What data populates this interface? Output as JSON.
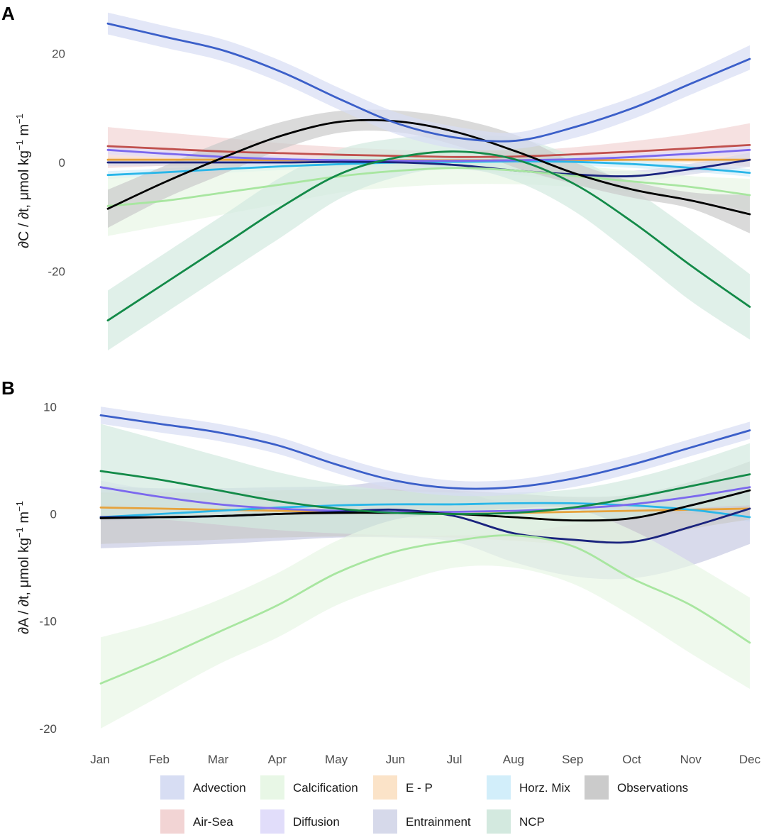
{
  "chart_data": [
    {
      "panel": "A",
      "type": "line",
      "ylabel": "∂C / ∂t, μmol kg⁻¹ m⁻¹",
      "ylabel_parts": {
        "pre": "∂C / ∂t, μmol kg",
        "exp1": "−1",
        "mid": " m",
        "exp2": "−1"
      },
      "categories": [
        "Jan",
        "Feb",
        "Mar",
        "Apr",
        "May",
        "Jun",
        "Jul",
        "Aug",
        "Sep",
        "Oct",
        "Nov",
        "Dec"
      ],
      "ylim": [
        -35,
        28
      ],
      "yticks": [
        -20,
        0,
        20
      ],
      "series": [
        {
          "name": "Air-Sea",
          "color": "#c0504d",
          "band": "#f2d4d4",
          "values": [
            3.0,
            2.5,
            2.0,
            1.7,
            1.4,
            1.2,
            1.0,
            1.1,
            1.5,
            2.0,
            2.6,
            3.2
          ],
          "lower": [
            -1.0,
            -0.6,
            -0.2,
            0,
            0.1,
            0.1,
            0.1,
            0.1,
            0.2,
            0.2,
            0.0,
            -0.8
          ],
          "upper": [
            6.5,
            5.5,
            4.5,
            3.5,
            2.8,
            2.3,
            2.0,
            2.1,
            2.8,
            3.9,
            5.3,
            7.2
          ]
        },
        {
          "name": "E - P",
          "color": "#e6a23c",
          "band": "#fbe3c8",
          "values": [
            0.5,
            0.5,
            0.5,
            0.4,
            0.4,
            0.4,
            0.4,
            0.4,
            0.4,
            0.5,
            0.5,
            0.5
          ],
          "lower": [
            0,
            0,
            0,
            0,
            0,
            0,
            0,
            0,
            0,
            0,
            0,
            0
          ],
          "upper": [
            1,
            1,
            1,
            0.9,
            0.9,
            0.9,
            0.9,
            0.9,
            0.9,
            1,
            1,
            1
          ]
        },
        {
          "name": "Horz. Mix",
          "color": "#29b6e8",
          "band": "#d2eefa",
          "values": [
            -2.3,
            -1.8,
            -1.2,
            -0.7,
            -0.3,
            0,
            0.1,
            0.2,
            0.1,
            -0.3,
            -1.0,
            -1.9
          ],
          "lower": [
            -3.0,
            -2.5,
            -1.9,
            -1.4,
            -1.0,
            -0.7,
            -0.6,
            -0.5,
            -0.6,
            -1.0,
            -1.7,
            -2.6
          ],
          "upper": [
            -1.6,
            -1.1,
            -0.5,
            0,
            0.4,
            0.7,
            0.8,
            0.9,
            0.8,
            0.4,
            -0.3,
            -1.2
          ]
        },
        {
          "name": "Diffusion",
          "color": "#7b68ee",
          "band": "#e1ddfa",
          "values": [
            2.3,
            1.6,
            1.0,
            0.6,
            0.4,
            0.3,
            0.3,
            0.4,
            0.6,
            1.0,
            1.6,
            2.3
          ],
          "lower": [
            1.5,
            0.9,
            0.4,
            0.1,
            0,
            0,
            0,
            0,
            0.1,
            0.4,
            0.9,
            1.5
          ],
          "upper": [
            3.1,
            2.3,
            1.6,
            1.1,
            0.8,
            0.6,
            0.6,
            0.8,
            1.1,
            1.6,
            2.3,
            3.1
          ]
        },
        {
          "name": "Entrainment",
          "color": "#1a237e",
          "band": "#d6d9ea",
          "values": [
            0,
            0,
            0,
            0,
            0.1,
            0,
            -0.5,
            -1.5,
            -2.2,
            -2.5,
            -1.2,
            0.5
          ],
          "lower": [
            -0.6,
            -0.6,
            -0.6,
            -0.6,
            -0.5,
            -0.6,
            -1.2,
            -2.3,
            -3.1,
            -3.5,
            -2.2,
            -0.8
          ],
          "upper": [
            0.6,
            0.6,
            0.6,
            0.6,
            0.7,
            0.6,
            0.2,
            -0.7,
            -1.3,
            -1.5,
            -0.2,
            1.8
          ]
        },
        {
          "name": "Calcification",
          "color": "#a8e6a0",
          "band": "#e8f7e6",
          "values": [
            -8.0,
            -7.0,
            -5.5,
            -4.0,
            -2.5,
            -1.5,
            -1.0,
            -1.5,
            -2.5,
            -3.5,
            -4.5,
            -6.0
          ],
          "lower": [
            -13.5,
            -11.5,
            -9.5,
            -7.5,
            -5.5,
            -4.5,
            -4.0,
            -4.0,
            -4.5,
            -5.5,
            -6.5,
            -9.0
          ],
          "upper": [
            -2.5,
            -2.5,
            -1.5,
            -0.5,
            0.5,
            1.5,
            2.0,
            1.0,
            -0.5,
            -1.5,
            -2.5,
            -3.0
          ]
        },
        {
          "name": "NCP",
          "color": "#138a48",
          "band": "#d3e9df",
          "values": [
            -29.0,
            -22.0,
            -15.0,
            -8.0,
            -2.0,
            1.0,
            2.0,
            0.5,
            -4.0,
            -11.0,
            -19.0,
            -26.5
          ],
          "lower": [
            -34.5,
            -27.5,
            -20.5,
            -13.5,
            -6.5,
            -2.5,
            -1.0,
            -3.5,
            -9.0,
            -17.0,
            -25.5,
            -32.5
          ],
          "upper": [
            -23.5,
            -16.5,
            -9.5,
            -2.5,
            2.5,
            4.5,
            5.0,
            4.5,
            1.0,
            -5.0,
            -12.5,
            -20.5
          ]
        },
        {
          "name": "Observations",
          "color": "#000000",
          "band": "#cbcbcb",
          "values": [
            -8.5,
            -3.5,
            1.0,
            5.0,
            7.5,
            7.5,
            5.5,
            2.0,
            -2.0,
            -5.0,
            -7.0,
            -9.5
          ],
          "lower": [
            -12.0,
            -6.5,
            -2.0,
            2.5,
            5.5,
            5.5,
            3.0,
            -1.0,
            -4.0,
            -6.5,
            -8.5,
            -13.0
          ],
          "upper": [
            -5.0,
            -0.5,
            4.0,
            7.5,
            9.5,
            9.5,
            8.0,
            5.0,
            0.0,
            -3.5,
            -5.5,
            -6.0
          ]
        },
        {
          "name": "Advection",
          "color": "#3b5fc9",
          "band": "#d7ddf3",
          "values": [
            25.5,
            23.0,
            20.5,
            16.5,
            11.5,
            7.0,
            4.5,
            4.0,
            6.5,
            10.0,
            14.5,
            19.0
          ],
          "lower": [
            23.5,
            21.0,
            18.5,
            14.5,
            9.5,
            5.0,
            2.5,
            2.5,
            4.5,
            8.0,
            12.5,
            17.0
          ],
          "upper": [
            27.5,
            25.0,
            22.5,
            18.5,
            13.5,
            9.0,
            6.5,
            5.5,
            8.5,
            12.0,
            16.5,
            21.5
          ]
        }
      ]
    },
    {
      "panel": "B",
      "type": "line",
      "ylabel": "∂A / ∂t, μmol kg⁻¹ m⁻¹",
      "ylabel_parts": {
        "pre": "∂A / ∂t, μmol kg",
        "exp1": "−1",
        "mid": " m",
        "exp2": "−1"
      },
      "categories": [
        "Jan",
        "Feb",
        "Mar",
        "Apr",
        "May",
        "Jun",
        "Jul",
        "Aug",
        "Sep",
        "Oct",
        "Nov",
        "Dec"
      ],
      "ylim": [
        -20.5,
        11
      ],
      "yticks": [
        -20,
        -10,
        0,
        10
      ],
      "series": [
        {
          "name": "E - P",
          "color": "#e6a23c",
          "band": "#fbe3c8",
          "values": [
            0.6,
            0.5,
            0.4,
            0.3,
            0.2,
            0.1,
            0.0,
            0.1,
            0.2,
            0.3,
            0.4,
            0.5
          ],
          "lower": [
            0.2,
            0.1,
            0,
            0,
            -0.1,
            -0.2,
            -0.3,
            -0.2,
            -0.1,
            0,
            0,
            0.1
          ],
          "upper": [
            1.0,
            0.9,
            0.8,
            0.6,
            0.5,
            0.4,
            0.3,
            0.4,
            0.5,
            0.6,
            0.8,
            0.9
          ]
        },
        {
          "name": "Horz. Mix",
          "color": "#29b6e8",
          "band": "#d2eefa",
          "values": [
            -0.3,
            0.0,
            0.3,
            0.6,
            0.8,
            0.9,
            0.9,
            1.0,
            1.0,
            0.8,
            0.4,
            -0.3
          ],
          "lower": [
            -0.7,
            -0.4,
            -0.1,
            0.2,
            0.4,
            0.5,
            0.5,
            0.6,
            0.6,
            0.4,
            0,
            -0.7
          ],
          "upper": [
            0.1,
            0.4,
            0.7,
            1.0,
            1.2,
            1.3,
            1.3,
            1.4,
            1.4,
            1.2,
            0.8,
            0.1
          ]
        },
        {
          "name": "Diffusion",
          "color": "#7b68ee",
          "band": "#e1ddfa",
          "values": [
            2.5,
            1.6,
            0.9,
            0.5,
            0.3,
            0.2,
            0.2,
            0.3,
            0.5,
            0.9,
            1.6,
            2.5
          ],
          "lower": [
            1.9,
            1.1,
            0.5,
            0.2,
            0.0,
            -0.1,
            -0.1,
            0.0,
            0.2,
            0.5,
            1.1,
            1.9
          ],
          "upper": [
            3.1,
            2.1,
            1.3,
            0.8,
            0.6,
            0.5,
            0.5,
            0.6,
            0.8,
            1.3,
            2.1,
            3.1
          ]
        },
        {
          "name": "Entrainment",
          "color": "#1a237e",
          "band": "#c8cbe3",
          "values": [
            -0.3,
            -0.3,
            -0.2,
            0.0,
            0.2,
            0.4,
            -0.2,
            -1.8,
            -2.4,
            -2.6,
            -1.2,
            0.5
          ],
          "lower": [
            -3.2,
            -3.0,
            -2.8,
            -2.5,
            -2.2,
            -2.2,
            -2.6,
            -4.5,
            -5.8,
            -6.0,
            -4.8,
            -2.8
          ],
          "upper": [
            2.6,
            2.4,
            2.4,
            2.5,
            2.6,
            3.0,
            2.2,
            0.9,
            1.0,
            0.8,
            2.4,
            3.8
          ]
        },
        {
          "name": "Observations",
          "color": "#000000",
          "band": "#cbcbcb",
          "values": [
            -0.4,
            -0.3,
            -0.2,
            0.0,
            0.1,
            0.1,
            0.0,
            -0.3,
            -0.6,
            -0.4,
            0.8,
            2.2
          ],
          "lower": [
            -2.8,
            -2.6,
            -2.4,
            -2.2,
            -2.1,
            -2.1,
            -2.2,
            -2.5,
            -2.8,
            -2.6,
            -1.4,
            -0.5
          ],
          "upper": [
            2.0,
            2.0,
            2.0,
            2.2,
            2.3,
            2.3,
            2.2,
            1.9,
            1.6,
            1.8,
            3.0,
            4.9
          ]
        },
        {
          "name": "NCP",
          "color": "#138a48",
          "band": "#d3e9df",
          "values": [
            4.0,
            3.2,
            2.2,
            1.2,
            0.5,
            0.1,
            0.0,
            0.1,
            0.6,
            1.5,
            2.6,
            3.7
          ],
          "lower": [
            -0.3,
            -0.5,
            -1.0,
            -1.5,
            -1.8,
            -2.0,
            -2.0,
            -1.8,
            -1.0,
            -0.3,
            0.5,
            0.8
          ],
          "upper": [
            8.4,
            6.9,
            5.4,
            3.9,
            2.8,
            2.2,
            2.0,
            2.0,
            2.3,
            3.3,
            4.8,
            6.6
          ]
        },
        {
          "name": "Calcification",
          "color": "#a8e6a0",
          "band": "#e8f7e6",
          "values": [
            -15.8,
            -13.5,
            -11.0,
            -8.5,
            -5.5,
            -3.5,
            -2.5,
            -2.0,
            -3.0,
            -6.0,
            -8.5,
            -12.0
          ],
          "lower": [
            -20.0,
            -17.0,
            -14.0,
            -11.5,
            -8.5,
            -6.5,
            -5.0,
            -5.0,
            -6.5,
            -9.5,
            -13.0,
            -16.3
          ],
          "upper": [
            -11.5,
            -10.0,
            -8.0,
            -5.5,
            -2.5,
            -0.5,
            0.0,
            0.5,
            0.5,
            -1.5,
            -4.5,
            -7.8
          ]
        },
        {
          "name": "Advection",
          "color": "#3b5fc9",
          "band": "#d7ddf3",
          "values": [
            9.2,
            8.4,
            7.6,
            6.4,
            4.6,
            3.1,
            2.4,
            2.5,
            3.3,
            4.6,
            6.2,
            7.8
          ],
          "lower": [
            8.4,
            7.6,
            6.8,
            5.6,
            3.8,
            2.3,
            1.7,
            1.8,
            2.5,
            3.8,
            5.4,
            7.0
          ],
          "upper": [
            10.0,
            9.2,
            8.4,
            7.2,
            5.4,
            3.9,
            3.1,
            3.2,
            4.1,
            5.4,
            7.0,
            8.6
          ]
        }
      ]
    }
  ],
  "legend": [
    {
      "name": "Advection",
      "color": "#d7ddf3"
    },
    {
      "name": "Calcification",
      "color": "#e8f7e6"
    },
    {
      "name": "E - P",
      "color": "#fbe3c8"
    },
    {
      "name": "Horz. Mix",
      "color": "#d2eefa"
    },
    {
      "name": "Observations",
      "color": "#cbcbcb"
    },
    {
      "name": "Air-Sea",
      "color": "#f2d4d4"
    },
    {
      "name": "Diffusion",
      "color": "#e1ddfa"
    },
    {
      "name": "Entrainment",
      "color": "#d6d9ea"
    },
    {
      "name": "NCP",
      "color": "#d3e9df"
    }
  ]
}
